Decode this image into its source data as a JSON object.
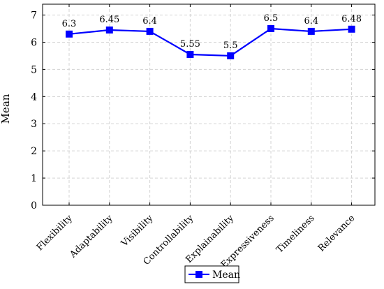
{
  "chart_data": {
    "type": "line",
    "title": "",
    "xlabel": "",
    "ylabel": "Mean",
    "ylim": [
      0,
      7.4
    ],
    "yticks": [
      0,
      1,
      2,
      3,
      4,
      5,
      6,
      7
    ],
    "categories": [
      "Flexibility",
      "Adaptability",
      "Visibility",
      "Controllability",
      "Explainability",
      "Expressiveness",
      "Timeliness",
      "Relevance"
    ],
    "series": [
      {
        "name": "Mean",
        "values": [
          6.3,
          6.45,
          6.4,
          5.55,
          5.5,
          6.5,
          6.4,
          6.48
        ],
        "labels": [
          "6.3",
          "6.45",
          "6.4",
          "5.55",
          "5.5",
          "6.5",
          "6.4",
          "6.48"
        ],
        "color": "#0000ff",
        "marker": "square"
      }
    ],
    "grid": true,
    "legend": "bottom"
  }
}
